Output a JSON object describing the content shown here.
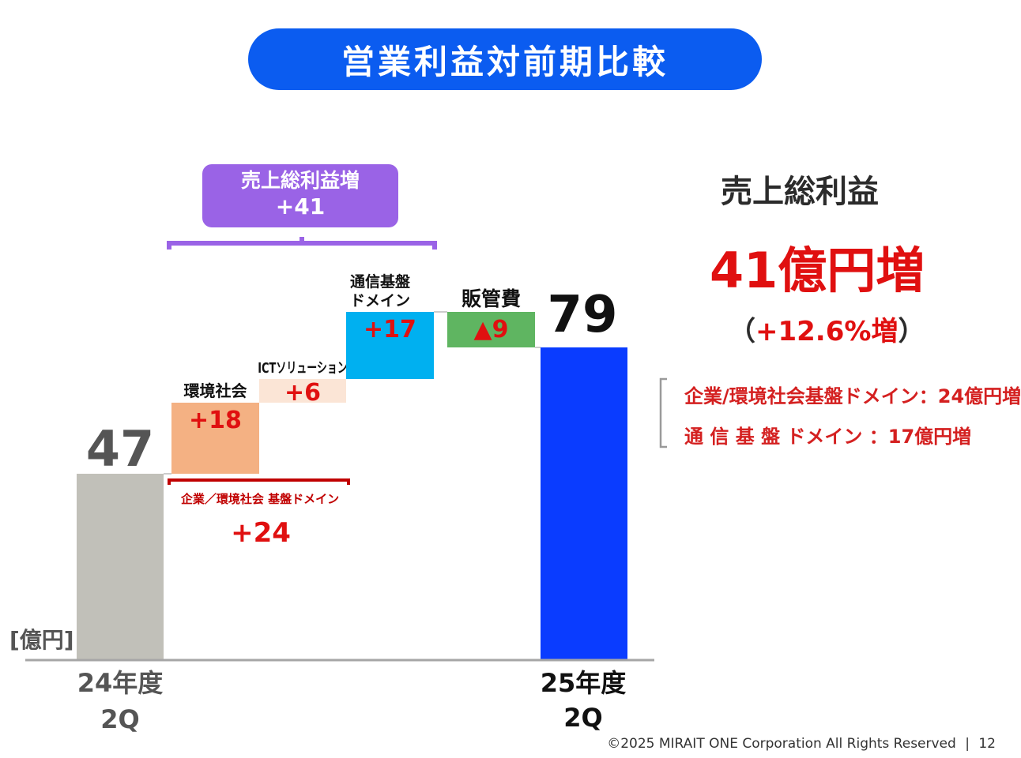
{
  "title": "営業利益対前期比較",
  "gross_profit_box": {
    "line1": "売上総利益増",
    "line2": "+41"
  },
  "unit_label": "[億円]",
  "chart_data": {
    "type": "waterfall",
    "unit": "億円",
    "start": {
      "label_line1": "24年度",
      "label_line2": "2Q",
      "value": 47,
      "value_label": "47",
      "color": "#c1c0b9"
    },
    "steps": [
      {
        "name": "環境社会",
        "delta": 18,
        "label": "+18",
        "color": "#f4b183"
      },
      {
        "name": "ICTソリューション",
        "delta": 6,
        "label": "+6",
        "color": "#fbe5d6"
      },
      {
        "name_line1": "通信基盤",
        "name_line2": "ドメイン",
        "delta": 17,
        "label": "+17",
        "color": "#00b0f0"
      },
      {
        "name": "販管費",
        "delta": -9,
        "label": "▲9",
        "color": "#5fb561"
      }
    ],
    "end": {
      "label_line1": "25年度",
      "label_line2": "2Q",
      "value": 79,
      "value_label": "79",
      "color": "#0a3cff"
    },
    "subtotal_bracket": {
      "label": "企業／環境社会 基盤ドメイン",
      "value_label": "+24"
    }
  },
  "side": {
    "title": "売上総利益",
    "big": "41億円増",
    "pct_open": "（",
    "pct_value": "+12.6%増",
    "pct_close": "）",
    "row1": "企業/環境社会基盤ドメイン：24億円増",
    "row2": "通 信 基 盤 ドメイン ：17億円増"
  },
  "footer": {
    "copyright": "©2025 MIRAIT ONE Corporation All Rights Reserved",
    "sep": "|",
    "page": "12"
  },
  "colors": {
    "title_bg": "#0b5cf0",
    "purple": "#9a63e6",
    "red": "#e01010",
    "dark_red": "#c00000"
  }
}
